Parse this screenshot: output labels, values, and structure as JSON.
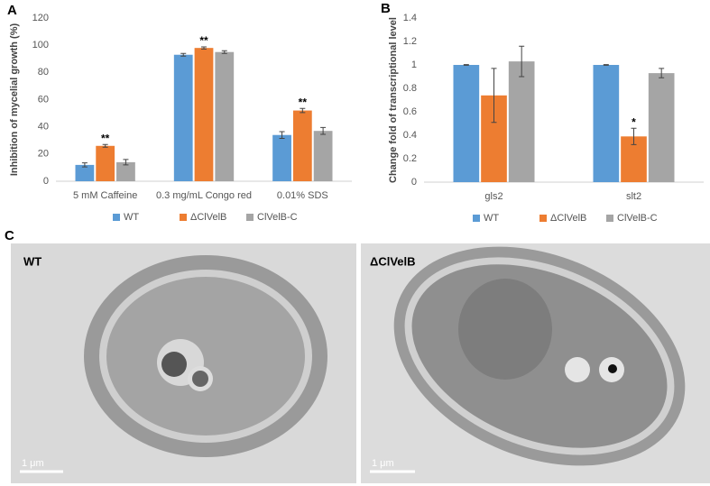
{
  "chart_data": [
    {
      "type": "bar",
      "panel_label": "A",
      "y_label": "Inhibition of mycelial growth (%)",
      "categories": [
        "5 mM Caffeine",
        "0.3 mg/mL Congo red",
        "0.01% SDS"
      ],
      "series": [
        {
          "name": "WT",
          "color": "#5b9bd5",
          "values": [
            12,
            93,
            34
          ],
          "errors": [
            1.5,
            1,
            2.5
          ]
        },
        {
          "name": "ΔClVelB",
          "color": "#ed7d31",
          "values": [
            26,
            98,
            52
          ],
          "errors": [
            1,
            0.8,
            1.5
          ],
          "significance": [
            "**",
            "**",
            "**"
          ]
        },
        {
          "name": "ClVelB-C",
          "color": "#a5a5a5",
          "values": [
            14,
            95,
            37
          ],
          "errors": [
            2,
            1,
            2.5
          ]
        }
      ],
      "ylim": [
        0,
        120
      ],
      "yticks": [
        0,
        20,
        40,
        60,
        80,
        100,
        120
      ],
      "grid": false,
      "legend": "bottom"
    },
    {
      "type": "bar",
      "panel_label": "B",
      "y_label": "Change fold of transcriptional level",
      "categories": [
        "gls2",
        "slt2"
      ],
      "series": [
        {
          "name": "WT",
          "color": "#5b9bd5",
          "values": [
            1,
            1
          ],
          "errors": [
            0.003,
            0.003
          ]
        },
        {
          "name": "ΔClVelB",
          "color": "#ed7d31",
          "values": [
            0.74,
            0.39
          ],
          "errors": [
            0.23,
            0.07
          ],
          "significance": [
            null,
            "*"
          ]
        },
        {
          "name": "ClVelB-C",
          "color": "#a5a5a5",
          "values": [
            1.03,
            0.93
          ],
          "errors": [
            0.13,
            0.04
          ]
        }
      ],
      "ylim": [
        0,
        1.4
      ],
      "yticks": [
        0,
        0.2,
        0.4,
        0.6,
        0.8,
        1,
        1.2,
        1.4
      ],
      "grid": false,
      "legend": "bottom"
    }
  ],
  "images": {
    "panel_label": "C",
    "panels": [
      {
        "label": "WT",
        "scale_bar": "1 μm"
      },
      {
        "label": "ΔClVelB",
        "scale_bar": "1 μm"
      }
    ]
  }
}
